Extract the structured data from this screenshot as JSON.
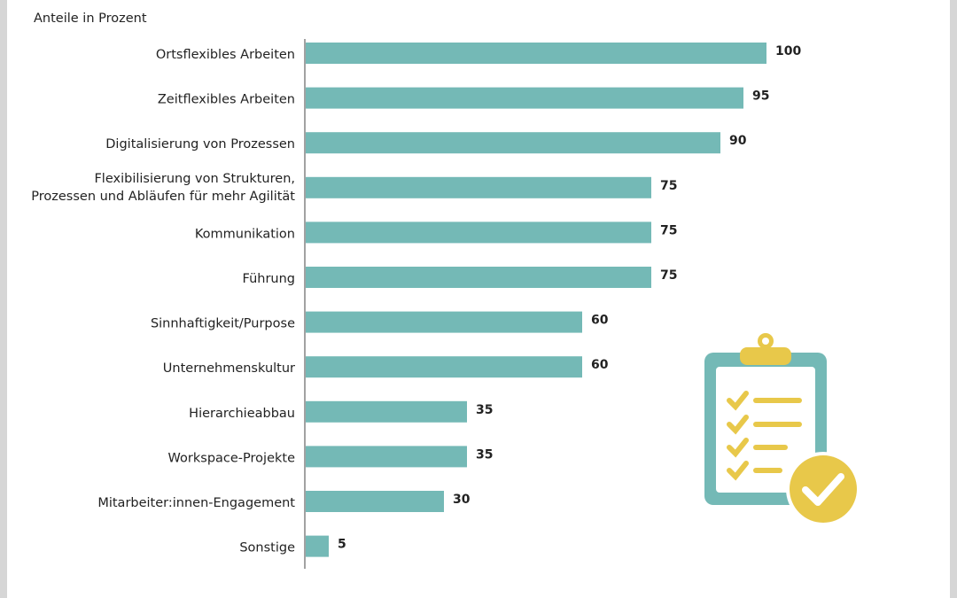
{
  "chart_data": {
    "type": "bar",
    "orientation": "horizontal",
    "subtitle": "Anteile in Prozent",
    "categories": [
      "Ortsflexibles Arbeiten",
      "Zeitflexibles Arbeiten",
      "Digitalisierung von Prozessen",
      [
        "Flexibilisierung von Strukturen,",
        "Prozessen und Abläufen für mehr Agilität"
      ],
      "Kommunikation",
      "Führung",
      "Sinnhaftigkeit/Purpose",
      "Unternehmenskultur",
      "Hierarchieabbau",
      "Workspace-Projekte",
      "Mitarbeiter:innen-Engagement",
      "Sonstige"
    ],
    "values": [
      100,
      95,
      90,
      75,
      75,
      75,
      60,
      60,
      35,
      35,
      30,
      5
    ],
    "color": "#74b9b6",
    "xlim": [
      0,
      100
    ]
  }
}
